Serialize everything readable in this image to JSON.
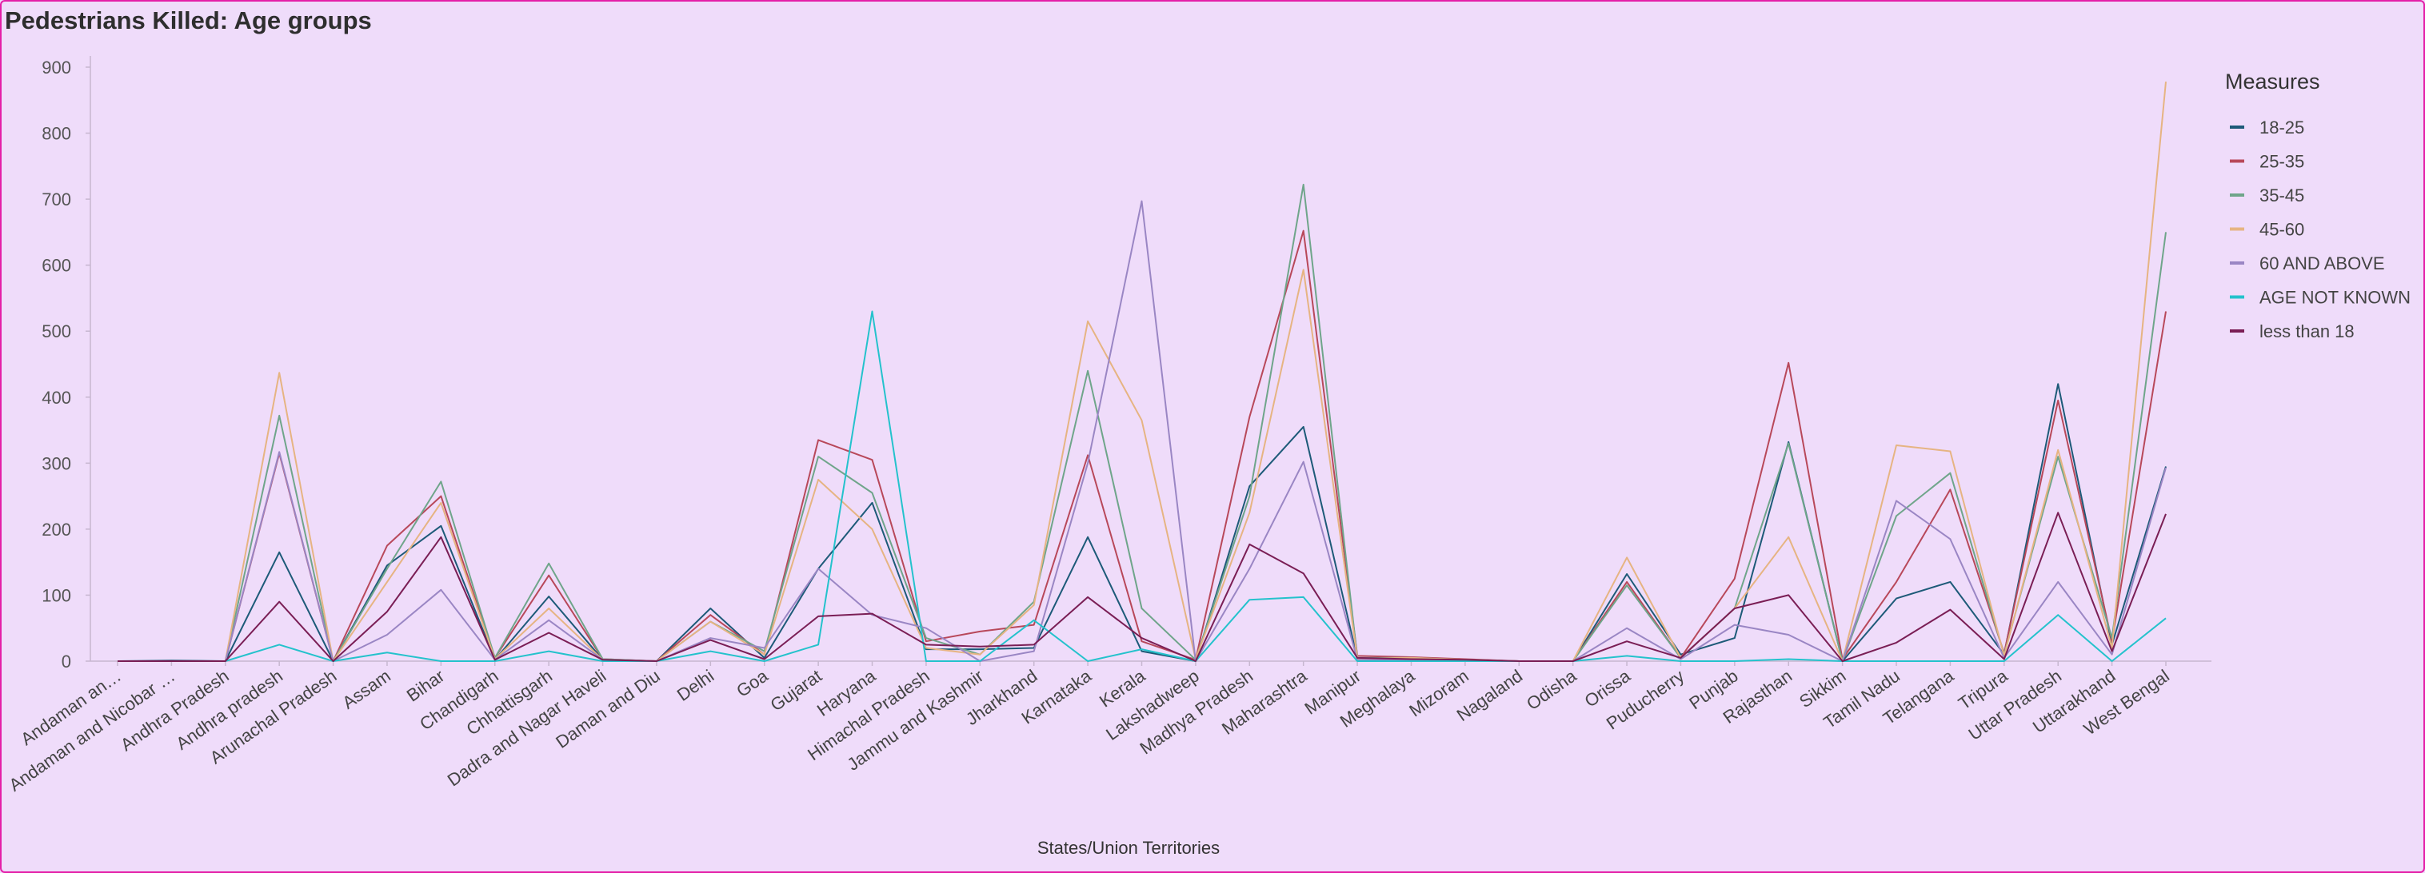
{
  "chart_title": "Pedestrians Killed: Age groups",
  "colors": {
    "background": "#efdcfa",
    "border": "#e41ea8",
    "axis": "#c7b7d0"
  },
  "chart_data": {
    "type": "line",
    "title": "Pedestrians Killed: Age groups",
    "xlabel": "States/Union Territories",
    "ylabel": "",
    "ylim": [
      0,
      900
    ],
    "yticks": [
      0,
      100,
      200,
      300,
      400,
      500,
      600,
      700,
      800,
      900
    ],
    "grid": false,
    "legend_title": "Measures",
    "legend_position": "right",
    "categories": [
      "Andaman an…",
      "Andaman and Nicobar …",
      "Andhra Pradesh",
      "Andhra pradesh",
      "Arunachal Pradesh",
      "Assam",
      "Bihar",
      "Chandigarh",
      "Chhattisgarh",
      "Dadra and Nagar Haveli",
      "Daman and Diu",
      "Delhi",
      "Goa",
      "Gujarat",
      "Haryana",
      "Himachal Pradesh",
      "Jammu and Kashmir",
      "Jharkhand",
      "Karnataka",
      "Kerala",
      "Lakshadweep",
      "Madhya Pradesh",
      "Maharashtra",
      "Manipur",
      "Meghalaya",
      "Mizoram",
      "Nagaland",
      "Odisha",
      "Orissa",
      "Puducherry",
      "Punjab",
      "Rajasthan",
      "Sikkim",
      "Tamil Nadu",
      "Telangana",
      "Tripura",
      "Uttar Pradesh",
      "Uttarakhand",
      "West Bengal"
    ],
    "series": [
      {
        "name": "18-25",
        "color": "#1d5a78",
        "values": [
          0,
          1,
          0,
          165,
          0,
          145,
          205,
          2,
          98,
          2,
          0,
          80,
          5,
          140,
          240,
          18,
          18,
          20,
          188,
          15,
          0,
          265,
          355,
          4,
          3,
          2,
          0,
          0,
          132,
          10,
          35,
          332,
          0,
          95,
          120,
          10,
          420,
          25,
          295
        ]
      },
      {
        "name": "25-35",
        "color": "#b8485a",
        "values": [
          0,
          0,
          0,
          315,
          0,
          175,
          250,
          5,
          130,
          3,
          0,
          70,
          10,
          335,
          305,
          30,
          45,
          55,
          312,
          30,
          2,
          370,
          652,
          8,
          6,
          3,
          0,
          0,
          120,
          5,
          125,
          452,
          3,
          120,
          260,
          12,
          395,
          30,
          530
        ]
      },
      {
        "name": "35-45",
        "color": "#6fa58a",
        "values": [
          0,
          0,
          0,
          372,
          0,
          140,
          272,
          5,
          148,
          3,
          0,
          60,
          15,
          310,
          255,
          35,
          10,
          90,
          440,
          80,
          2,
          250,
          722,
          5,
          5,
          2,
          0,
          0,
          115,
          5,
          80,
          330,
          0,
          220,
          285,
          10,
          310,
          35,
          650
        ]
      },
      {
        "name": "45-60",
        "color": "#e6b482",
        "values": [
          0,
          0,
          0,
          437,
          0,
          120,
          240,
          3,
          80,
          2,
          0,
          60,
          10,
          275,
          200,
          20,
          10,
          85,
          515,
          365,
          3,
          225,
          593,
          4,
          5,
          2,
          0,
          0,
          157,
          5,
          80,
          188,
          0,
          327,
          318,
          8,
          320,
          20,
          878
        ]
      },
      {
        "name": "60 AND ABOVE",
        "color": "#9a86c4",
        "values": [
          0,
          0,
          0,
          317,
          0,
          40,
          108,
          2,
          62,
          2,
          0,
          35,
          20,
          140,
          70,
          50,
          0,
          15,
          300,
          697,
          0,
          140,
          302,
          2,
          2,
          1,
          0,
          0,
          50,
          3,
          55,
          40,
          0,
          243,
          185,
          5,
          120,
          10,
          293
        ]
      },
      {
        "name": "AGE NOT KNOWN",
        "color": "#24c2cc",
        "values": [
          0,
          0,
          0,
          25,
          0,
          13,
          0,
          0,
          15,
          0,
          0,
          15,
          0,
          25,
          530,
          0,
          0,
          62,
          0,
          18,
          0,
          93,
          97,
          0,
          0,
          0,
          0,
          0,
          8,
          0,
          0,
          3,
          0,
          0,
          0,
          0,
          70,
          0,
          65
        ]
      },
      {
        "name": "less than 18",
        "color": "#7a1e55",
        "values": [
          0,
          0,
          0,
          90,
          0,
          75,
          188,
          2,
          43,
          2,
          0,
          32,
          3,
          68,
          72,
          25,
          22,
          25,
          97,
          35,
          0,
          177,
          133,
          5,
          3,
          2,
          0,
          0,
          30,
          5,
          80,
          100,
          0,
          28,
          78,
          3,
          225,
          15,
          223
        ]
      }
    ]
  }
}
